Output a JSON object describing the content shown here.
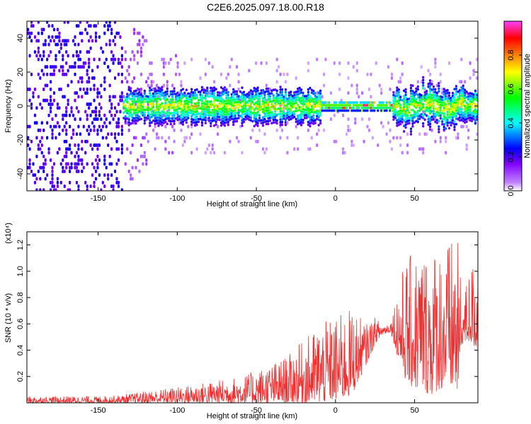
{
  "title": "C2E6.2025.097.18.00.R18",
  "chart_data": [
    {
      "type": "heatmap",
      "xlabel": "Height of straight line (km)",
      "ylabel": "Frequency (Hz)",
      "xlim": [
        -195,
        90
      ],
      "ylim": [
        -50,
        50
      ],
      "x_ticks": [
        -150,
        -100,
        -50,
        0,
        50
      ],
      "y_ticks": [
        -40,
        -20,
        0,
        20,
        40
      ],
      "colorbar": {
        "label": "Normalized spectral amplitude",
        "range": [
          0,
          1
        ],
        "ticks": [
          "0.0",
          "0.2",
          "0.4",
          "0.6",
          "0.8"
        ],
        "tick_values": [
          0.0,
          0.2,
          0.4,
          0.6,
          0.8
        ],
        "colormap": [
          "#ffffff",
          "#8000ff",
          "#0000ff",
          "#00ffff",
          "#00ff00",
          "#ffff00",
          "#ff8000",
          "#ff0000",
          "#ff00ff"
        ]
      },
      "grid": false
    },
    {
      "type": "line",
      "xlabel": "Height of straight line (km)",
      "ylabel": "SNR (10 * v/v)",
      "scale_note": "(x10⁴)",
      "xlim": [
        -195,
        90
      ],
      "ylim": [
        0,
        1.3
      ],
      "x_ticks": [
        -150,
        -100,
        -50,
        0,
        50
      ],
      "y_ticks": [
        0.2,
        0.4,
        0.6,
        0.8,
        1.0,
        1.2
      ],
      "color": "#f03030",
      "envelope_x": [
        -195,
        -150,
        -135,
        -120,
        -100,
        -80,
        -60,
        -50,
        -40,
        -30,
        -20,
        -10,
        0,
        10,
        20,
        25,
        30,
        35,
        40,
        45,
        50,
        55,
        60,
        65,
        70,
        75,
        78,
        80,
        85,
        90
      ],
      "envelope_lo": [
        0.0,
        0.0,
        0.0,
        0.0,
        0.0,
        0.0,
        0.0,
        0.0,
        0.0,
        0.0,
        0.0,
        0.0,
        0.02,
        0.05,
        0.3,
        0.45,
        0.52,
        0.54,
        0.3,
        0.15,
        0.1,
        0.1,
        0.05,
        0.1,
        0.1,
        0.1,
        0.05,
        0.45,
        0.45,
        0.4
      ],
      "envelope_hi": [
        0.05,
        0.05,
        0.06,
        0.09,
        0.12,
        0.16,
        0.2,
        0.25,
        0.3,
        0.36,
        0.48,
        0.6,
        0.65,
        0.72,
        0.6,
        0.65,
        0.6,
        0.62,
        0.95,
        1.1,
        1.15,
        1.2,
        1.15,
        1.25,
        1.2,
        1.28,
        1.2,
        0.75,
        1.05,
        1.1
      ],
      "grid": false
    }
  ]
}
